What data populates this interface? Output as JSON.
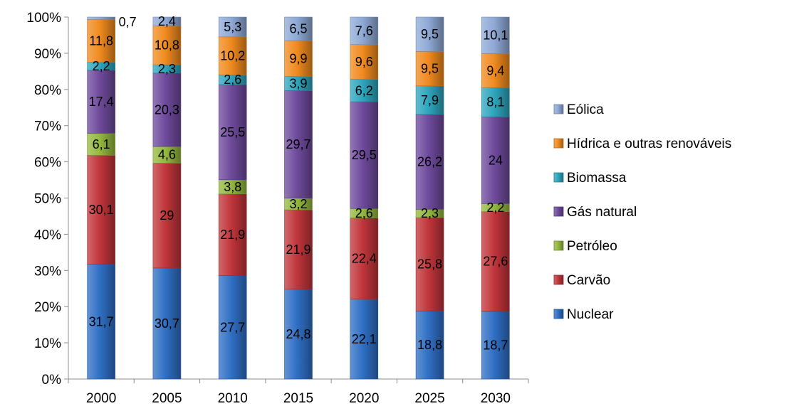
{
  "chart_data": {
    "type": "bar",
    "stacked": true,
    "percent": true,
    "categories": [
      "2000",
      "2005",
      "2010",
      "2015",
      "2020",
      "2025",
      "2030"
    ],
    "series": [
      {
        "name": "Nuclear",
        "color": "#2f6fc4",
        "values": [
          31.7,
          30.7,
          27.7,
          24.8,
          22.1,
          18.8,
          18.7
        ]
      },
      {
        "name": "Carvão",
        "color": "#c0353a",
        "values": [
          30.1,
          29,
          21.9,
          21.9,
          22.4,
          25.8,
          27.6
        ]
      },
      {
        "name": "Petróleo",
        "color": "#94b83e",
        "values": [
          6.1,
          4.6,
          3.8,
          3.2,
          2.6,
          2.3,
          2.2
        ]
      },
      {
        "name": "Gás natural",
        "color": "#6e4a9c",
        "values": [
          17.4,
          20.3,
          25.5,
          29.7,
          29.5,
          26.2,
          24
        ]
      },
      {
        "name": "Biomassa",
        "color": "#2ea5bd",
        "values": [
          2.2,
          2.3,
          2.6,
          3.9,
          6.2,
          7.9,
          8.1
        ]
      },
      {
        "name": "Hídrica e outras renováveis",
        "color": "#f08a1f",
        "values": [
          11.8,
          10.8,
          10.2,
          9.9,
          9.6,
          9.5,
          9.4
        ]
      },
      {
        "name": "Eólica",
        "color": "#8fa9d6",
        "values": [
          0.7,
          2.4,
          5.3,
          6.5,
          7.6,
          9.5,
          10.1
        ]
      }
    ],
    "data_labels": {
      "Nuclear": [
        "31,7",
        "30,7",
        "27,7",
        "24,8",
        "22,1",
        "18,8",
        "18,7"
      ],
      "Carvão": [
        "30,1",
        "29",
        "21,9",
        "21,9",
        "22,4",
        "25,8",
        "27,6"
      ],
      "Petróleo": [
        "6,1",
        "4,6",
        "3,8",
        "3,2",
        "2,6",
        "2,3",
        "2,2"
      ],
      "Gás natural": [
        "17,4",
        "20,3",
        "25,5",
        "29,7",
        "29,5",
        "26,2",
        "24"
      ],
      "Biomassa": [
        "2,2",
        "2,3",
        "2,6",
        "3,9",
        "6,2",
        "7,9",
        "8,1"
      ],
      "Hídrica e outras renováveis": [
        "11,8",
        "10,8",
        "10,2",
        "9,9",
        "9,6",
        "9,5",
        "9,4"
      ],
      "Eólica": [
        "0,7",
        "2,4",
        "5,3",
        "6,5",
        "7,6",
        "9,5",
        "10,1"
      ]
    },
    "y_ticks": [
      "0%",
      "10%",
      "20%",
      "30%",
      "40%",
      "50%",
      "60%",
      "70%",
      "80%",
      "90%",
      "100%"
    ],
    "ylim": [
      0,
      100
    ],
    "grid": false,
    "legend": "right",
    "legend_order": [
      "Eólica",
      "Hídrica e outras renováveis",
      "Biomassa",
      "Gás natural",
      "Petróleo",
      "Carvão",
      "Nuclear"
    ],
    "title": "",
    "xlabel": "",
    "ylabel": ""
  }
}
